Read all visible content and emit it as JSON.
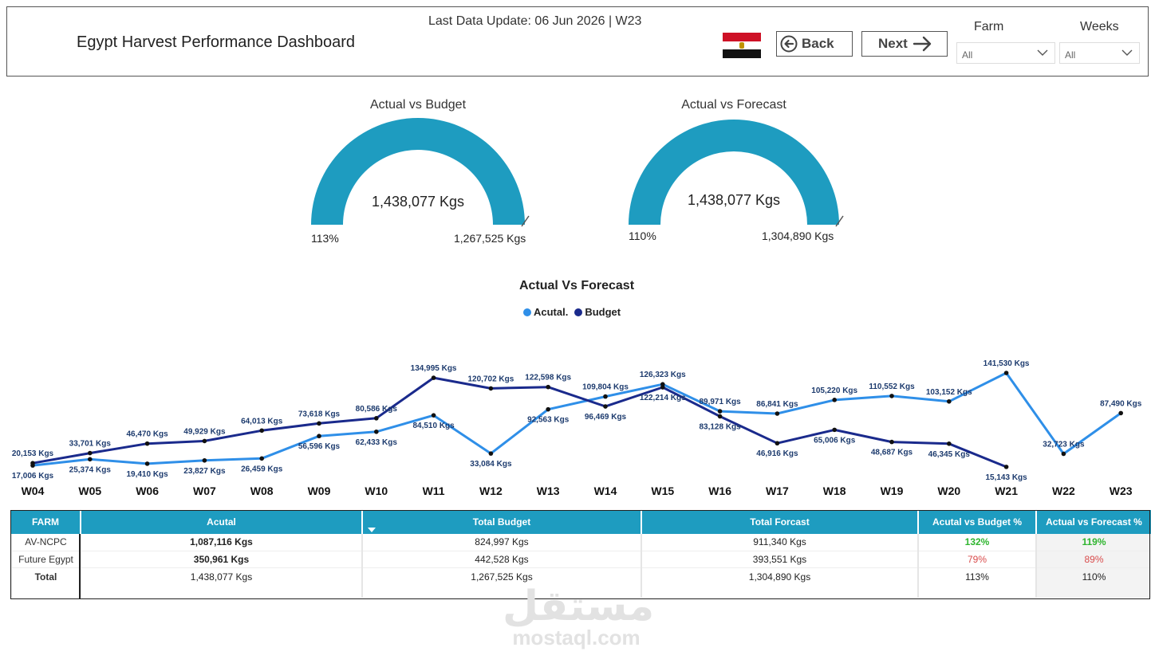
{
  "header": {
    "title": "Egypt Harvest Performance Dashboard",
    "last_update": "Last Data Update: 06 Jun 2026 | W23",
    "back_label": "Back",
    "next_label": "Next",
    "farm_label": "Farm",
    "farm_value": "All",
    "weeks_label": "Weeks",
    "weeks_value": "All",
    "flag_icon": "egypt-flag-icon"
  },
  "gauges": [
    {
      "title": "Actual vs Budget",
      "value": "1,438,077 Kgs",
      "min_label": "113%",
      "max_label": "1,267,525 Kgs",
      "fill_fraction": 1.0,
      "color": "#1e9cc0"
    },
    {
      "title": "Actual vs Forecast",
      "value": "1,438,077 Kgs",
      "min_label": "110%",
      "max_label": "1,304,890 Kgs",
      "fill_fraction": 1.0,
      "color": "#1e9cc0"
    }
  ],
  "chart_data": {
    "type": "line",
    "title": "Actual Vs Forecast",
    "categories": [
      "W04",
      "W05",
      "W06",
      "W07",
      "W08",
      "W09",
      "W10",
      "W11",
      "W12",
      "W13",
      "W14",
      "W15",
      "W16",
      "W17",
      "W18",
      "W19",
      "W20",
      "W21",
      "W22",
      "W23"
    ],
    "series": [
      {
        "name": "Acutal.",
        "color": "#2f8fe8",
        "values": [
          17006,
          25374,
          19410,
          23827,
          26459,
          56596,
          62433,
          84510,
          33084,
          92563,
          109804,
          126323,
          89971,
          86841,
          105220,
          110552,
          103152,
          141530,
          32723,
          87490
        ],
        "labels": [
          "17,006 Kgs",
          "25,374 Kgs",
          "19,410 Kgs",
          "23,827 Kgs",
          "26,459 Kgs",
          "56,596 Kgs",
          "62,433 Kgs",
          "84,510 Kgs",
          "33,084 Kgs",
          "92,563 Kgs",
          "109,804 Kgs",
          "126,323 Kgs",
          "89,971 Kgs",
          "86,841 Kgs",
          "105,220 Kgs",
          "110,552 Kgs",
          "103,152 Kgs",
          "141,530 Kgs",
          "32,723 Kgs",
          "87,490 Kgs"
        ]
      },
      {
        "name": "Budget",
        "color": "#1a2a8c",
        "values": [
          20153,
          33701,
          46470,
          49929,
          64013,
          73618,
          80586,
          134995,
          120702,
          122598,
          96469,
          122214,
          83128,
          46916,
          65006,
          48687,
          46345,
          15143,
          null,
          null
        ],
        "labels": [
          "20,153 Kgs",
          "33,701 Kgs",
          "46,470 Kgs",
          "49,929 Kgs",
          "64,013 Kgs",
          "73,618 Kgs",
          "80,586 Kgs",
          "134,995 Kgs",
          "120,702 Kgs",
          "122,598 Kgs",
          "96,469 Kgs",
          "122,214 Kgs",
          "83,128 Kgs",
          "46,916 Kgs",
          "65,006 Kgs",
          "48,687 Kgs",
          "46,345 Kgs",
          "15,143 Kgs",
          null,
          null
        ]
      }
    ],
    "legend_position": "top-center",
    "grid": false
  },
  "table": {
    "headers": [
      "FARM",
      "Acutal",
      "Total Budget",
      "Total Forcast",
      "Acutal vs Budget %",
      "Actual vs Forecast %"
    ],
    "rows": [
      {
        "farm": "AV-NCPC",
        "actual": "1,087,116 Kgs",
        "budget": "824,997 Kgs",
        "forecast": "911,340 Kgs",
        "vs_budget": "132%",
        "vs_forecast": "119%"
      },
      {
        "farm": "Future Egypt",
        "actual": "350,961 Kgs",
        "budget": "442,528 Kgs",
        "forecast": "393,551 Kgs",
        "vs_budget": "79%",
        "vs_forecast": "89%"
      }
    ],
    "total": {
      "farm": "Total",
      "actual": "1,438,077 Kgs",
      "budget": "1,267,525 Kgs",
      "forecast": "1,304,890 Kgs",
      "vs_budget": "113%",
      "vs_forecast": "110%"
    },
    "colors": {
      "header": "#1e9cc0",
      "good": "#2fb52f",
      "bad": "#d94c4c"
    }
  },
  "watermark": {
    "arabic": "مستقل",
    "latin": "mostaql.com"
  }
}
